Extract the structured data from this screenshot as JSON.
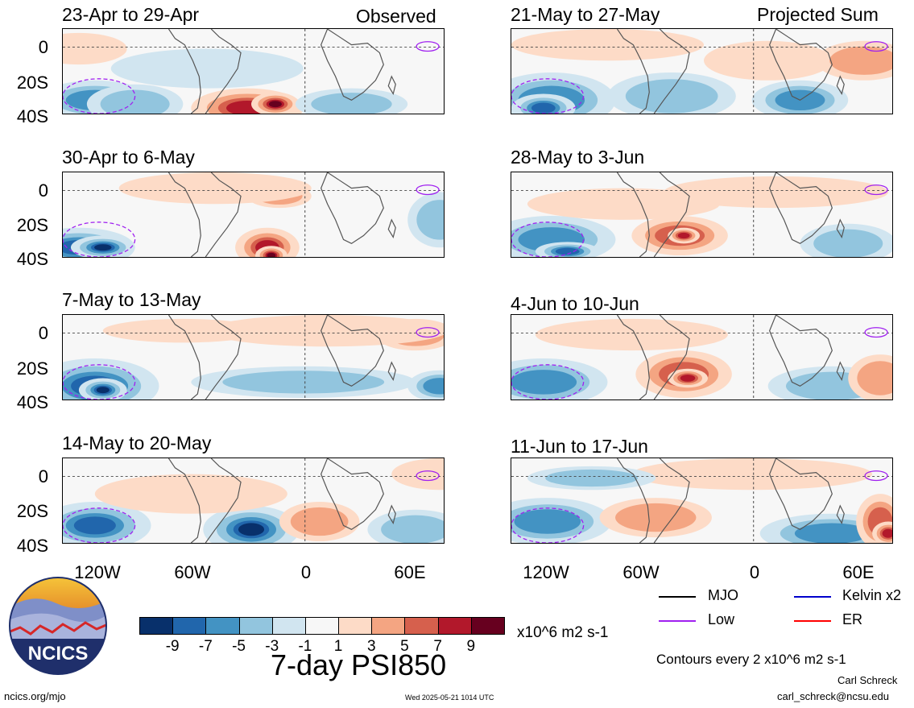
{
  "header": {
    "observed_label": "Observed",
    "projected_label": "Projected Sum"
  },
  "panels_left": [
    {
      "title": "23-Apr to 29-Apr"
    },
    {
      "title": "30-Apr to 6-May"
    },
    {
      "title": "7-May to 13-May"
    },
    {
      "title": "14-May to 20-May"
    }
  ],
  "panels_right": [
    {
      "title": "21-May to 27-May"
    },
    {
      "title": "28-May to 3-Jun"
    },
    {
      "title": "4-Jun to 10-Jun"
    },
    {
      "title": "11-Jun to 17-Jun"
    }
  ],
  "axes": {
    "lat_labels": [
      "0",
      "20S",
      "40S"
    ],
    "lon_labels": [
      "120W",
      "60W",
      "0",
      "60E"
    ]
  },
  "colorbar": {
    "labels": [
      "-9",
      "-7",
      "-5",
      "-3",
      "-1",
      "1",
      "3",
      "5",
      "7",
      "9"
    ],
    "colors": [
      "#08306b",
      "#2166ac",
      "#4393c3",
      "#92c5de",
      "#d1e5f0",
      "#f7f7f7",
      "#fddbc7",
      "#f4a582",
      "#d6604d",
      "#b2182b",
      "#67001f"
    ],
    "units": "x10^6 m2 s-1"
  },
  "title": "7-day PSI850",
  "legend": {
    "items": [
      {
        "label": "MJO",
        "color": "#000000"
      },
      {
        "label": "Kelvin x2",
        "color": "#0000cc"
      },
      {
        "label": "Low",
        "color": "#a020f0"
      },
      {
        "label": "ER",
        "color": "#ff0000"
      }
    ],
    "contours_note": "Contours every 2 x10^6 m2 s-1"
  },
  "footer": {
    "logo_text": "NCICS",
    "site": "ncics.org/mjo",
    "timestamp": "Wed 2025-05-21 1014 UTC",
    "author": "Carl Schreck",
    "email": "carl_schreck@ncsu.edu"
  }
}
